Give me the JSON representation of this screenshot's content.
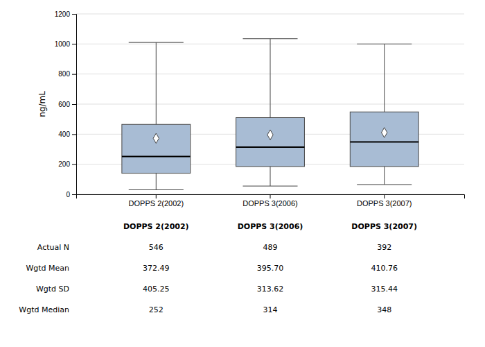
{
  "chart_data": {
    "type": "box",
    "categories": [
      "DOPPS 2(2002)",
      "DOPPS 3(2006)",
      "DOPPS 3(2007)"
    ],
    "boxes": [
      {
        "whisker_low": 30,
        "q1": 140,
        "median": 252,
        "q3": 465,
        "whisker_high": 1010,
        "mean": 372.49
      },
      {
        "whisker_low": 55,
        "q1": 185,
        "median": 314,
        "q3": 510,
        "whisker_high": 1035,
        "mean": 395.7
      },
      {
        "whisker_low": 65,
        "q1": 185,
        "median": 348,
        "q3": 548,
        "whisker_high": 1000,
        "mean": 410.76
      }
    ],
    "table_rows": [
      {
        "label": "Actual N",
        "values": [
          "546",
          "489",
          "392"
        ]
      },
      {
        "label": "Wgtd Mean",
        "values": [
          "372.49",
          "395.70",
          "410.76"
        ]
      },
      {
        "label": "Wgtd SD",
        "values": [
          "405.25",
          "313.62",
          "315.44"
        ]
      },
      {
        "label": "Wgtd Median",
        "values": [
          "252",
          "314",
          "348"
        ]
      }
    ],
    "ylabel": "ng/mL",
    "ylim": [
      0,
      1200
    ],
    "yticks": [
      0,
      200,
      400,
      600,
      800,
      1000,
      1200
    ],
    "grid": true,
    "color": "#a8bcd4",
    "marker": "diamond"
  }
}
